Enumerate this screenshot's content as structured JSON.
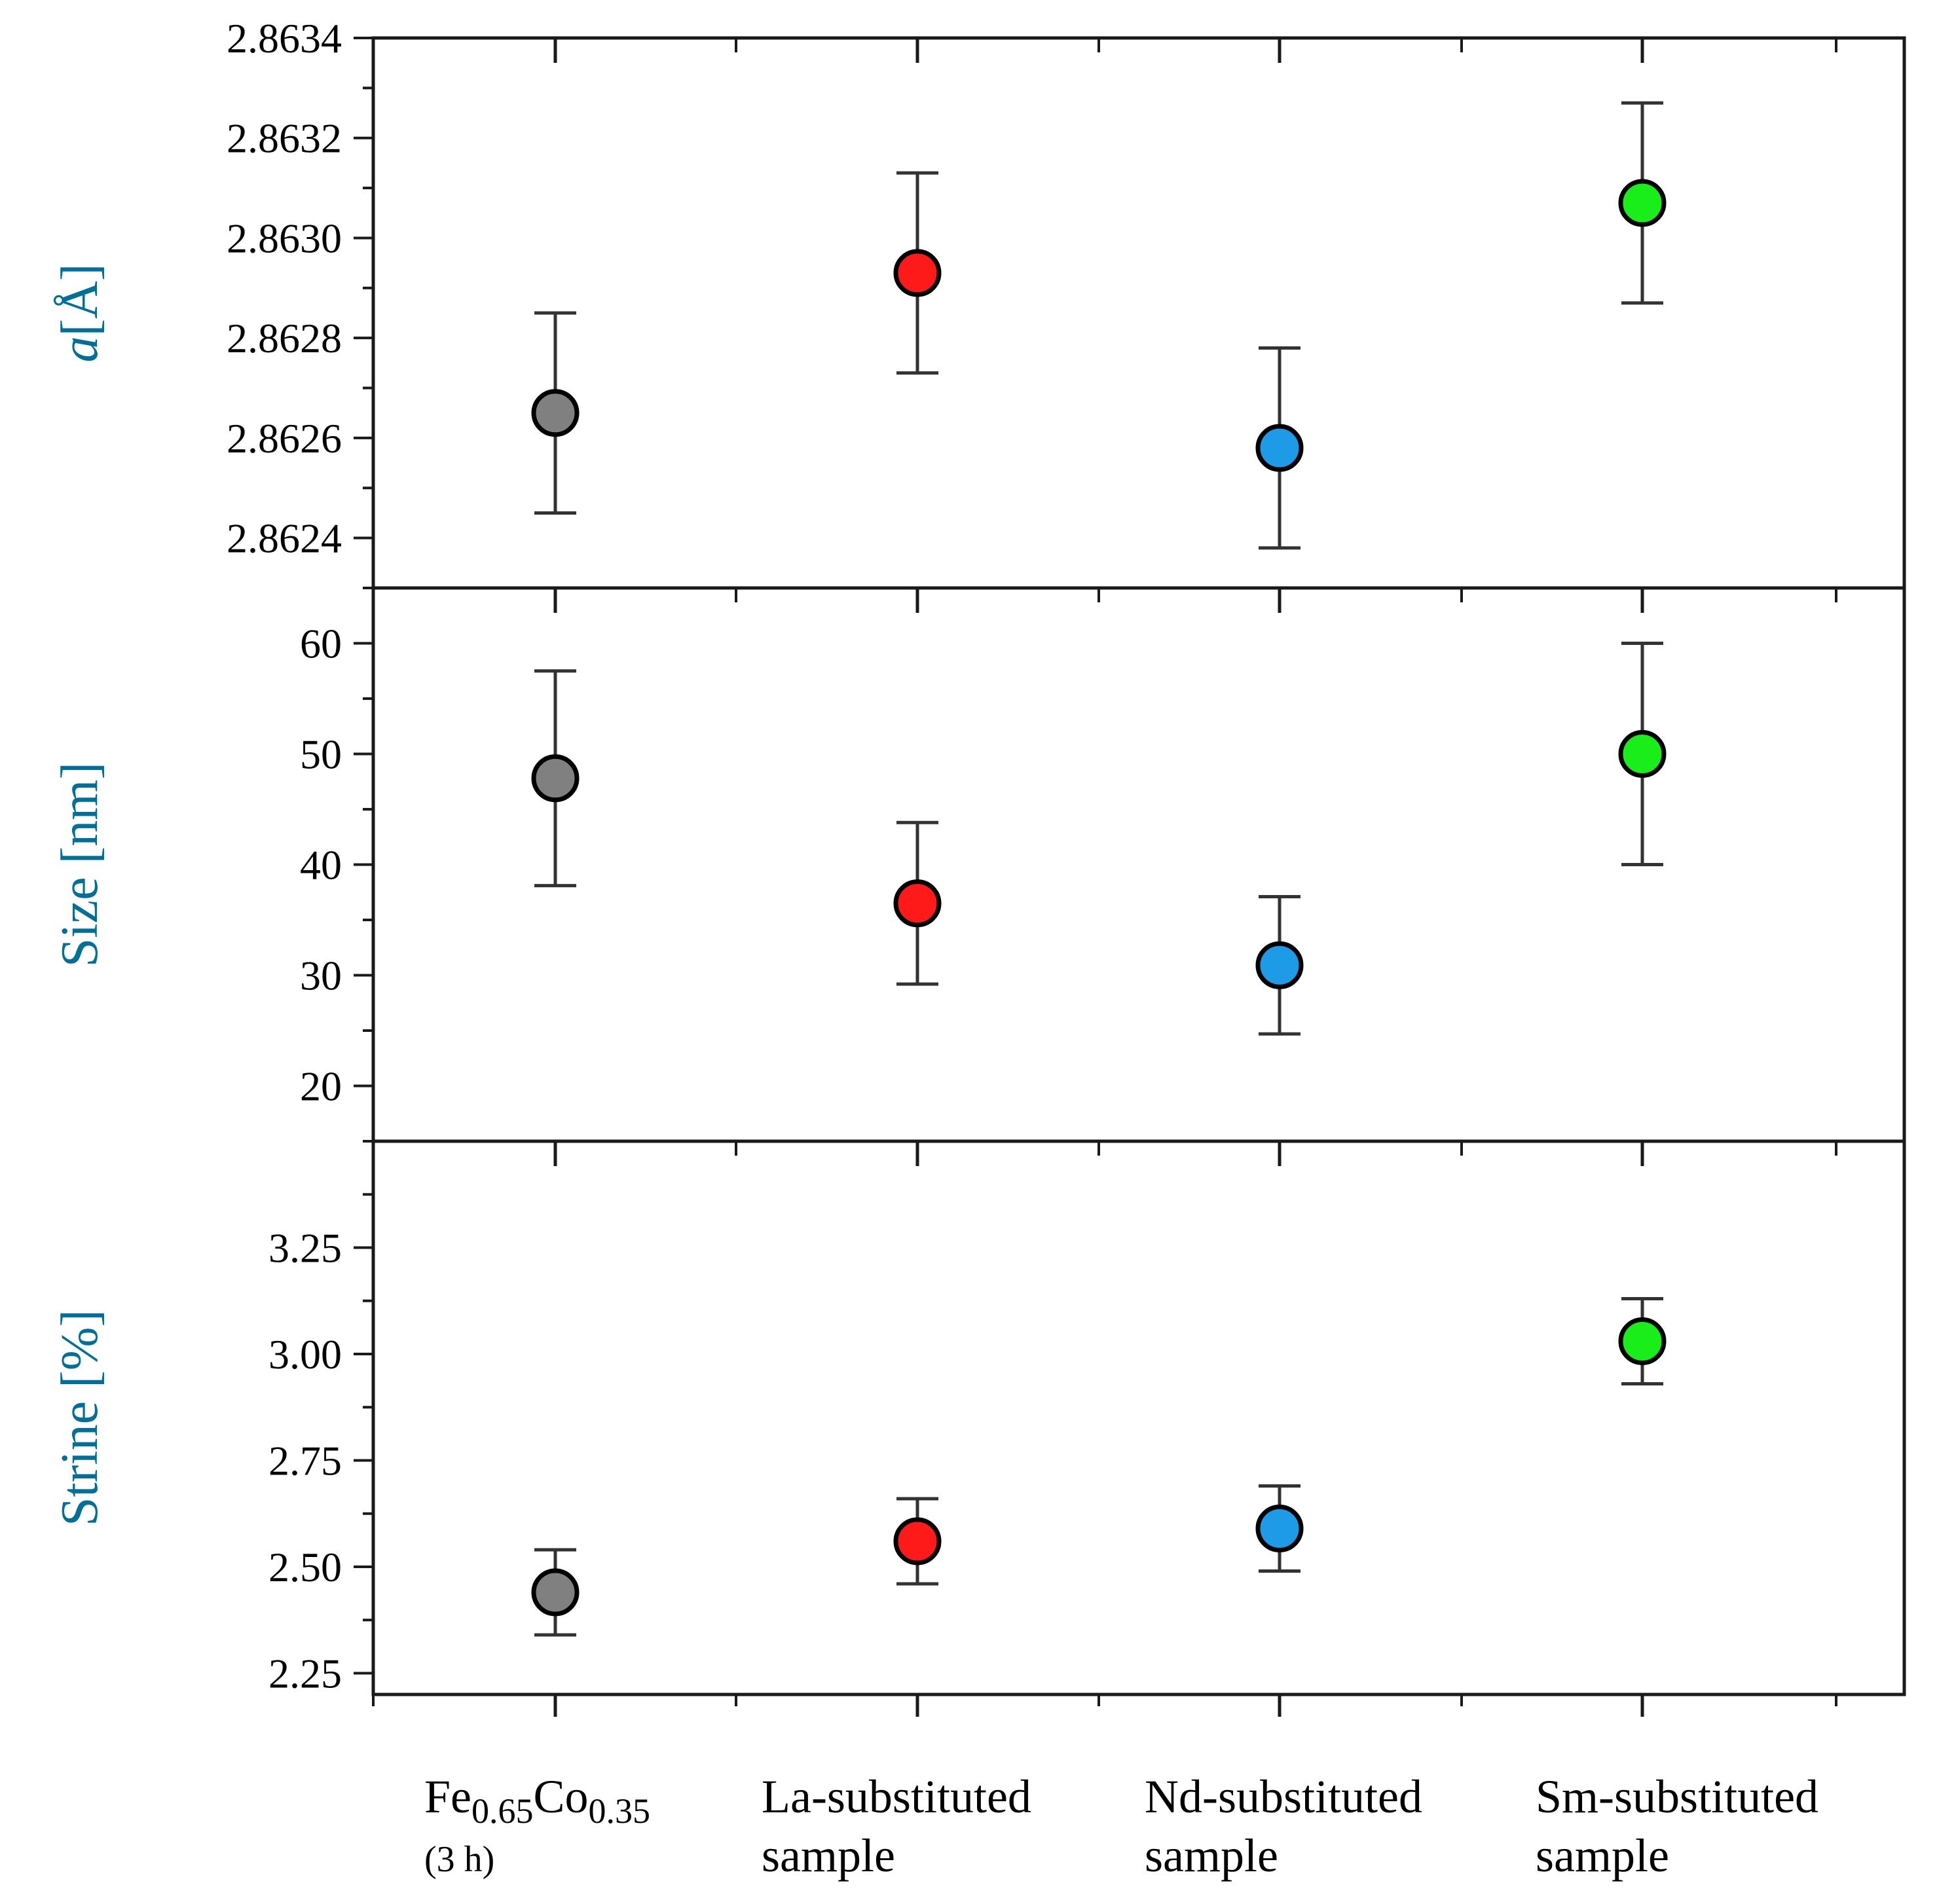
{
  "chart_data": [
    {
      "type": "scatter",
      "categories": [
        "Fe0.65Co0.35 (3 h)",
        "La-substituted sample",
        "Nd-substituted sample",
        "Sm-substituted sample"
      ],
      "ylabel_parts": {
        "italic": "a",
        "unit": "[Å]"
      },
      "ylim": [
        2.8623,
        2.8634
      ],
      "yticks": [
        "2.8624",
        "2.8626",
        "2.8628",
        "2.8630",
        "2.8632",
        "2.8634"
      ],
      "series": [
        {
          "values": [
            2.86265,
            2.86293,
            2.86258,
            2.86307
          ],
          "errors": [
            0.0002,
            0.0002,
            0.0002,
            0.0002
          ],
          "colors": [
            "#808080",
            "#ff1a1a",
            "#1e9be6",
            "#1aee1a"
          ]
        }
      ]
    },
    {
      "type": "scatter",
      "categories": [
        "Fe0.65Co0.35 (3 h)",
        "La-substituted sample",
        "Nd-substituted sample",
        "Sm-substituted sample"
      ],
      "ylabel": "Size [nm]",
      "ylim": [
        15,
        65
      ],
      "yticks": [
        "20",
        "30",
        "40",
        "50",
        "60"
      ],
      "series": [
        {
          "values": [
            47.8,
            36.5,
            30.9,
            50.0
          ],
          "errors": [
            9.7,
            7.3,
            6.2,
            10.0
          ],
          "colors": [
            "#808080",
            "#ff1a1a",
            "#1e9be6",
            "#1aee1a"
          ]
        }
      ]
    },
    {
      "type": "scatter",
      "categories": [
        "Fe0.65Co0.35 (3 h)",
        "La-substituted sample",
        "Nd-substituted sample",
        "Sm-substituted sample"
      ],
      "ylabel": "Strine [%]",
      "ylim": [
        2.2,
        3.5
      ],
      "yticks": [
        "2.25",
        "2.50",
        "2.75",
        "3.00",
        "3.25"
      ],
      "series": [
        {
          "values": [
            2.44,
            2.56,
            2.59,
            3.03
          ],
          "errors": [
            0.1,
            0.1,
            0.1,
            0.1
          ],
          "colors": [
            "#808080",
            "#ff1a1a",
            "#1e9be6",
            "#1aee1a"
          ]
        }
      ]
    }
  ],
  "x_labels": [
    {
      "lines": [
        {
          "parts": [
            [
              "Fe",
              "n"
            ],
            [
              "0.65",
              "s"
            ],
            [
              "Co",
              "n"
            ],
            [
              "0.35",
              "s"
            ]
          ]
        },
        {
          "parts": [
            [
              "(3 h)",
              "m"
            ]
          ]
        }
      ]
    },
    {
      "lines": [
        {
          "parts": [
            [
              "La-substituted",
              "n"
            ]
          ]
        },
        {
          "parts": [
            [
              "sample",
              "n"
            ]
          ]
        }
      ]
    },
    {
      "lines": [
        {
          "parts": [
            [
              "Nd-substituted",
              "n"
            ]
          ]
        },
        {
          "parts": [
            [
              "sample",
              "n"
            ]
          ]
        }
      ]
    },
    {
      "lines": [
        {
          "parts": [
            [
              "Sm-substituted",
              "n"
            ]
          ]
        },
        {
          "parts": [
            [
              "sample",
              "n"
            ]
          ]
        }
      ]
    }
  ]
}
